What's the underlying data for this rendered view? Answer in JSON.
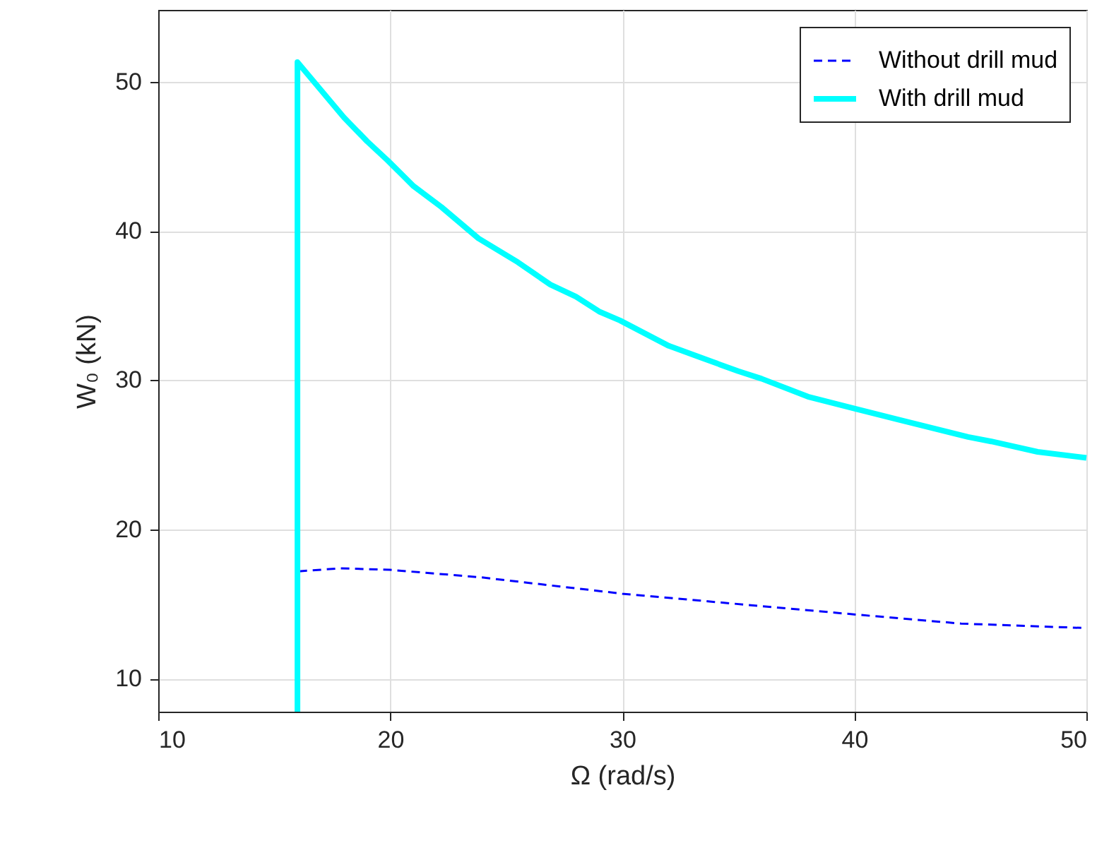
{
  "chart_data": {
    "type": "line",
    "xlabel": "Ω (rad/s)",
    "ylabel": "W₀ (kN)",
    "xlim": [
      10,
      50
    ],
    "ylim": [
      7.8,
      54.8
    ],
    "xticks": [
      10,
      20,
      30,
      40,
      50
    ],
    "yticks": [
      10,
      20,
      30,
      40,
      50
    ],
    "grid": true,
    "legend": "top right",
    "marker": "none",
    "series": [
      {
        "name": "Without drill mud",
        "color": "#0000ff",
        "line_style": "dashed",
        "x": [
          16.05,
          17.86,
          19.97,
          23.9,
          30.0,
          40.1,
          44.6,
          50.0
        ],
        "values": [
          17.2,
          17.4,
          17.3,
          16.8,
          15.7,
          14.3,
          13.7,
          13.4
        ]
      },
      {
        "name": "With drill mud",
        "color": "#00ffff",
        "line_style": "solid",
        "x": [
          16.0,
          16.0,
          18.0,
          19.0,
          19.9,
          21.0,
          22.2,
          23.8,
          25.5,
          26.9,
          28.0,
          29.0,
          29.9,
          32.0,
          35.0,
          36.0,
          38.0,
          40.0,
          44.9,
          45.9,
          47.9,
          50.0
        ],
        "values": [
          7.8,
          51.3,
          47.6,
          46.0,
          44.7,
          43.0,
          41.6,
          39.5,
          37.9,
          36.4,
          35.6,
          34.6,
          34.0,
          32.3,
          30.6,
          30.1,
          28.9,
          28.1,
          26.2,
          25.9,
          25.2,
          24.8
        ]
      }
    ]
  }
}
